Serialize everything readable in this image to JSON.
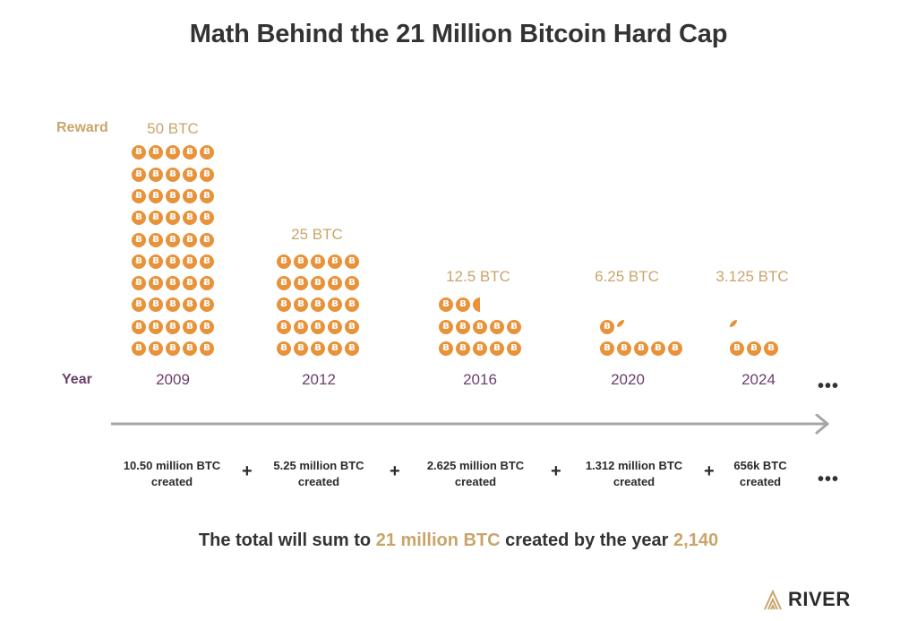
{
  "title": "Math Behind the 21 Million Bitcoin Hard Cap",
  "row_labels": {
    "reward": "Reward",
    "year": "Year"
  },
  "coin_glyph": "Ƀ",
  "colors": {
    "coin": "#e8923a",
    "gold": "#c9a56b",
    "purple": "#6b3f6b",
    "arrow": "#a6a6a6"
  },
  "epochs": [
    {
      "reward": "50 BTC",
      "year": "2009",
      "created_line1": "10.50 million BTC",
      "created_line2": "created",
      "coins": 50
    },
    {
      "reward": "25 BTC",
      "year": "2012",
      "created_line1": "5.25 million BTC",
      "created_line2": "created",
      "coins": 25
    },
    {
      "reward": "12.5 BTC",
      "year": "2016",
      "created_line1": "2.625 million BTC",
      "created_line2": "created",
      "coins": 12.5
    },
    {
      "reward": "6.25 BTC",
      "year": "2020",
      "created_line1": "1.312 million BTC",
      "created_line2": "created",
      "coins": 6.25
    },
    {
      "reward": "3.125 BTC",
      "year": "2024",
      "created_line1": "656k BTC",
      "created_line2": "created",
      "coins": 3.125
    }
  ],
  "plus_sign": "+",
  "ellipsis": "•••",
  "summary": {
    "prefix": "The total will sum to ",
    "highlight1": "21 million BTC",
    "middle": " created by the year ",
    "highlight2": "2,140"
  },
  "logo": {
    "text": "RIVER",
    "icon": "river-chevron-icon"
  }
}
